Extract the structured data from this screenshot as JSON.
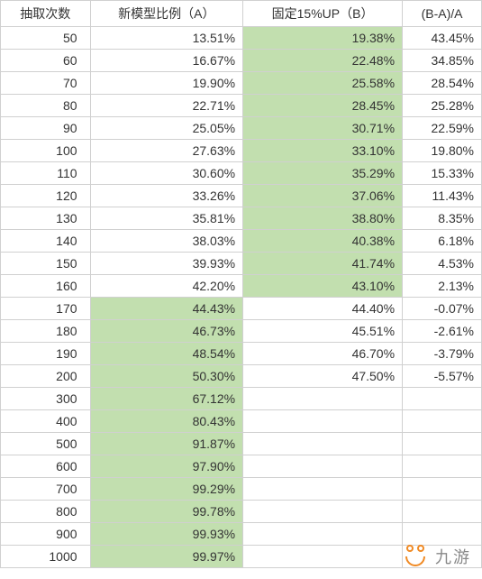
{
  "headers": {
    "col1": "抽取次数",
    "col2": "新模型比例（A）",
    "col3": "固定15%UP（B）",
    "col4": "(B-A)/A"
  },
  "highlight_color": "#c2dfaf",
  "rows": [
    {
      "count": "50",
      "a": "13.51%",
      "b": "19.38%",
      "diff": "43.45%",
      "hlA": false,
      "hlB": true
    },
    {
      "count": "60",
      "a": "16.67%",
      "b": "22.48%",
      "diff": "34.85%",
      "hlA": false,
      "hlB": true
    },
    {
      "count": "70",
      "a": "19.90%",
      "b": "25.58%",
      "diff": "28.54%",
      "hlA": false,
      "hlB": true
    },
    {
      "count": "80",
      "a": "22.71%",
      "b": "28.45%",
      "diff": "25.28%",
      "hlA": false,
      "hlB": true
    },
    {
      "count": "90",
      "a": "25.05%",
      "b": "30.71%",
      "diff": "22.59%",
      "hlA": false,
      "hlB": true
    },
    {
      "count": "100",
      "a": "27.63%",
      "b": "33.10%",
      "diff": "19.80%",
      "hlA": false,
      "hlB": true
    },
    {
      "count": "110",
      "a": "30.60%",
      "b": "35.29%",
      "diff": "15.33%",
      "hlA": false,
      "hlB": true
    },
    {
      "count": "120",
      "a": "33.26%",
      "b": "37.06%",
      "diff": "11.43%",
      "hlA": false,
      "hlB": true
    },
    {
      "count": "130",
      "a": "35.81%",
      "b": "38.80%",
      "diff": "8.35%",
      "hlA": false,
      "hlB": true
    },
    {
      "count": "140",
      "a": "38.03%",
      "b": "40.38%",
      "diff": "6.18%",
      "hlA": false,
      "hlB": true
    },
    {
      "count": "150",
      "a": "39.93%",
      "b": "41.74%",
      "diff": "4.53%",
      "hlA": false,
      "hlB": true
    },
    {
      "count": "160",
      "a": "42.20%",
      "b": "43.10%",
      "diff": "2.13%",
      "hlA": false,
      "hlB": true
    },
    {
      "count": "170",
      "a": "44.43%",
      "b": "44.40%",
      "diff": "-0.07%",
      "hlA": true,
      "hlB": false
    },
    {
      "count": "180",
      "a": "46.73%",
      "b": "45.51%",
      "diff": "-2.61%",
      "hlA": true,
      "hlB": false
    },
    {
      "count": "190",
      "a": "48.54%",
      "b": "46.70%",
      "diff": "-3.79%",
      "hlA": true,
      "hlB": false
    },
    {
      "count": "200",
      "a": "50.30%",
      "b": "47.50%",
      "diff": "-5.57%",
      "hlA": true,
      "hlB": false
    },
    {
      "count": "300",
      "a": "67.12%",
      "b": "",
      "diff": "",
      "hlA": true,
      "hlB": false
    },
    {
      "count": "400",
      "a": "80.43%",
      "b": "",
      "diff": "",
      "hlA": true,
      "hlB": false
    },
    {
      "count": "500",
      "a": "91.87%",
      "b": "",
      "diff": "",
      "hlA": true,
      "hlB": false
    },
    {
      "count": "600",
      "a": "97.90%",
      "b": "",
      "diff": "",
      "hlA": true,
      "hlB": false
    },
    {
      "count": "700",
      "a": "99.29%",
      "b": "",
      "diff": "",
      "hlA": true,
      "hlB": false
    },
    {
      "count": "800",
      "a": "99.78%",
      "b": "",
      "diff": "",
      "hlA": true,
      "hlB": false
    },
    {
      "count": "900",
      "a": "99.93%",
      "b": "",
      "diff": "",
      "hlA": true,
      "hlB": false
    },
    {
      "count": "1000",
      "a": "99.97%",
      "b": "",
      "diff": "",
      "hlA": true,
      "hlB": false
    }
  ],
  "watermark": {
    "text": "九游",
    "icon_color": "#f08a24"
  }
}
